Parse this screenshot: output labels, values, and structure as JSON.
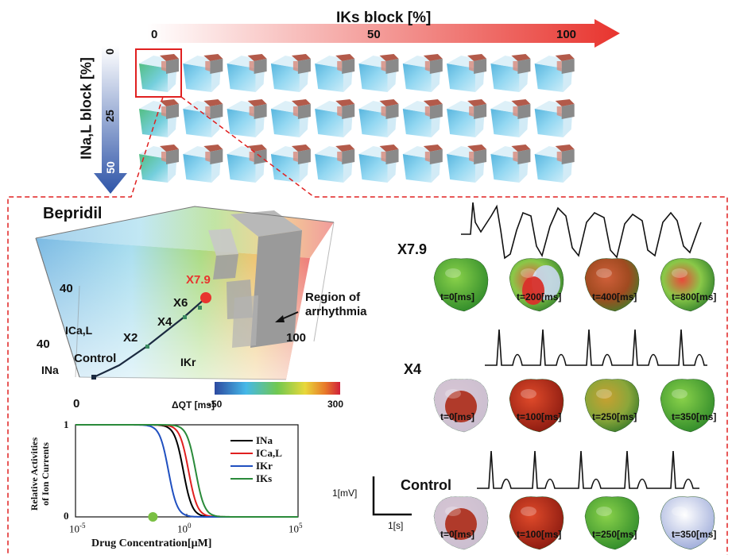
{
  "top": {
    "iks_title": "IKs block  [%]",
    "iks_ticks": [
      "0",
      "50",
      "100"
    ],
    "ina_title": "INa,L block [%]",
    "ina_ticks": [
      "0",
      "25",
      "50"
    ]
  },
  "bepridil": {
    "title": "Bepridil",
    "axes": {
      "ina": "INa",
      "ical": "ICa,L",
      "ikr": "IKr"
    },
    "axis_values": {
      "v40a": "40",
      "v40b": "40",
      "v0": "0",
      "v100": "100"
    },
    "points": [
      "Control",
      "X2",
      "X4",
      "X6",
      "X7.9"
    ],
    "region_label": "Region of\narrhythmia",
    "colorbar": {
      "label": "ΔQT [ms]",
      "min": "-50",
      "max": "300"
    }
  },
  "chart": {
    "ylabel_1": "Relative Activities",
    "ylabel_2": "of Ion Currents",
    "xlabel": "Drug Concentration[μM]",
    "yticks": [
      "1",
      "0"
    ],
    "xticks": [
      "10",
      "-5",
      "10",
      "0",
      "10",
      "5"
    ],
    "legend": [
      "INa",
      "ICa,L",
      "IKr",
      "IKs"
    ]
  },
  "chart_data": {
    "type": "line",
    "xlabel": "Drug Concentration[μM]",
    "ylabel": "Relative Activities of Ion Currents",
    "x_scale": "log",
    "xlim": [
      1e-05,
      100000
    ],
    "ylim": [
      0,
      1
    ],
    "series": [
      {
        "name": "INa",
        "color": "#000000",
        "ic50": 0.7
      },
      {
        "name": "ICa,L",
        "color": "#e02020",
        "ic50": 1.2
      },
      {
        "name": "IKr",
        "color": "#2050c0",
        "ic50": 0.15
      },
      {
        "name": "IKs",
        "color": "#2a8a3a",
        "ic50": 2.5
      }
    ],
    "marker": {
      "x": 0.03,
      "y": 0,
      "color": "#7ac043"
    }
  },
  "ecg": {
    "rows": [
      {
        "name": "X7.9",
        "times": [
          "t=0[ms]",
          "t=200[ms]",
          "t=400[ms]",
          "t=800[ms]"
        ]
      },
      {
        "name": "X4",
        "times": [
          "t=0[ms]",
          "t=100[ms]",
          "t=250[ms]",
          "t=350[ms]"
        ]
      },
      {
        "name": "Control",
        "times": [
          "t=0[ms]",
          "t=100[ms]",
          "t=250[ms]",
          "t=350[ms]"
        ]
      }
    ],
    "scale_mv": "1[mV]",
    "scale_s": "1[s]"
  },
  "colors": {
    "red_arrow": "#e8342e",
    "blue_arrow": "#2f55a8",
    "dash": "#e02020",
    "x79": "#e8342e"
  }
}
